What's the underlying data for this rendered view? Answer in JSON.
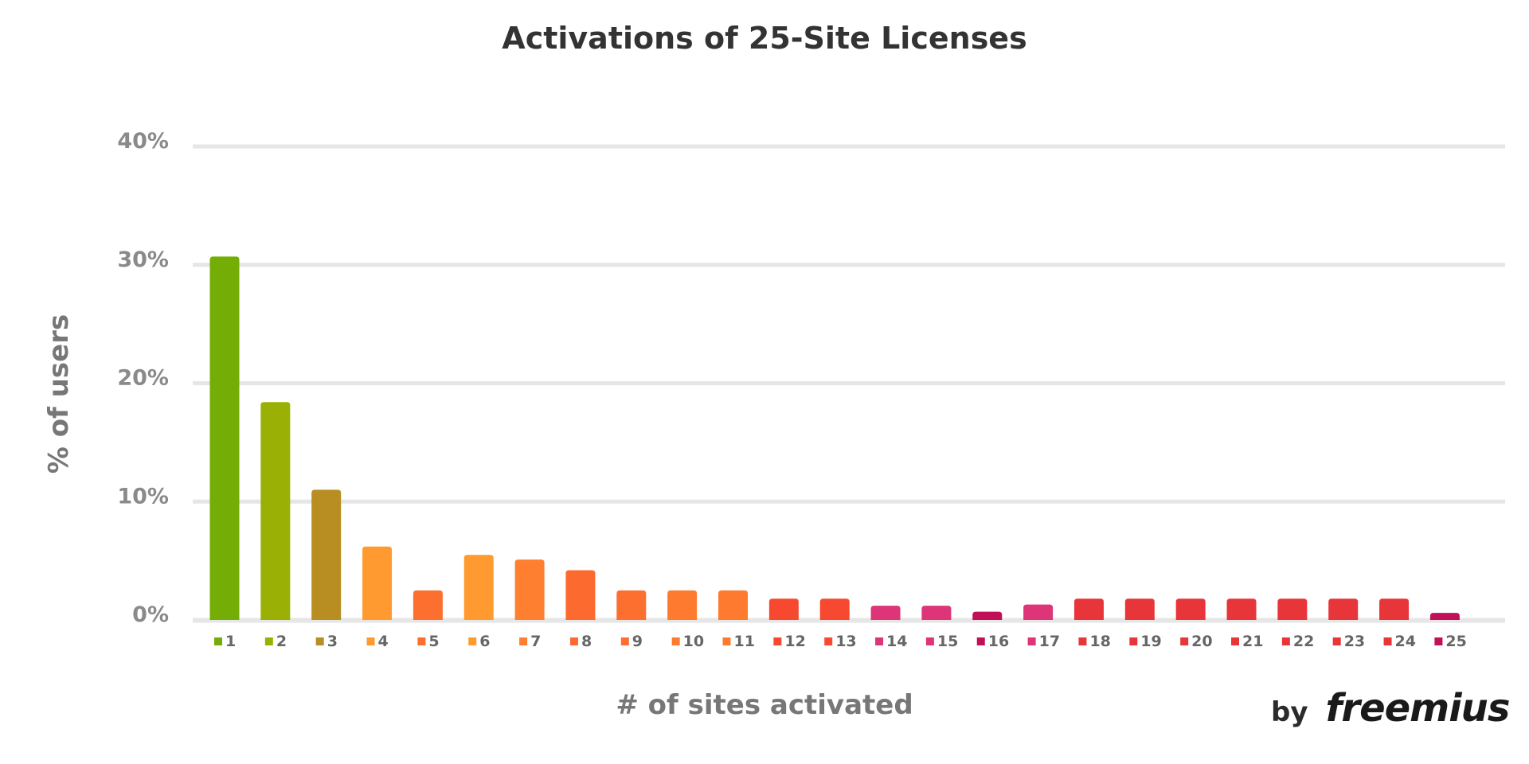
{
  "chart_data": {
    "type": "bar",
    "title": "Activations of 25-Site Licenses",
    "xlabel": "# of sites activated",
    "ylabel": "% of users",
    "ylim": [
      0,
      40
    ],
    "yticks": [
      "0%",
      "10%",
      "20%",
      "30%",
      "40%"
    ],
    "ytick_values": [
      0,
      10,
      20,
      30,
      40
    ],
    "grid": true,
    "legend": "bottom",
    "categories": [
      "1",
      "2",
      "3",
      "4",
      "5",
      "6",
      "7",
      "8",
      "9",
      "10",
      "11",
      "12",
      "13",
      "14",
      "15",
      "16",
      "17",
      "18",
      "19",
      "20",
      "21",
      "22",
      "23",
      "24",
      "25"
    ],
    "values": [
      30.7,
      18.4,
      11.0,
      6.2,
      2.5,
      5.5,
      5.1,
      4.2,
      2.5,
      2.5,
      2.5,
      1.8,
      1.8,
      1.2,
      1.2,
      0.7,
      1.3,
      1.8,
      1.8,
      1.8,
      1.8,
      1.8,
      1.8,
      1.8,
      0.6
    ],
    "colors": [
      "#73ad06",
      "#9bb005",
      "#b88d22",
      "#fe9a2f",
      "#fd6f2f",
      "#fe9a2f",
      "#fd7f2f",
      "#fd6a30",
      "#fd6f2f",
      "#fd7a2f",
      "#fd7a2f",
      "#f6492f",
      "#f6492f",
      "#dd3578",
      "#dd3578",
      "#c10f58",
      "#dd3578",
      "#e8353a",
      "#e8353a",
      "#e8353a",
      "#e8353a",
      "#e8353a",
      "#e8353a",
      "#e8353a",
      "#c10f58"
    ]
  },
  "brand": {
    "by": "by",
    "logo": "freemius"
  }
}
